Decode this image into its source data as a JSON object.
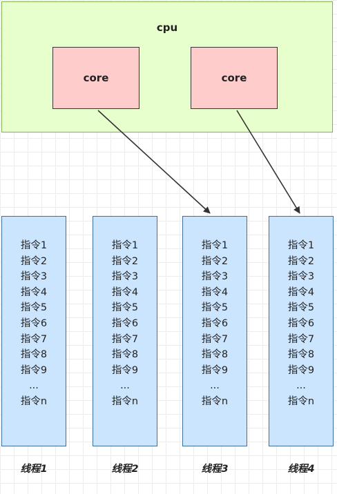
{
  "cpu": {
    "label": "cpu",
    "cores": [
      "core",
      "core"
    ]
  },
  "threads": [
    {
      "label": "线程1",
      "instructions": [
        "指令1",
        "指令2",
        "指令3",
        "指令4",
        "指令5",
        "指令6",
        "指令7",
        "指令8",
        "指令9",
        "...",
        "指令n"
      ]
    },
    {
      "label": "线程2",
      "instructions": [
        "指令1",
        "指令2",
        "指令3",
        "指令4",
        "指令5",
        "指令6",
        "指令7",
        "指令8",
        "指令9",
        "...",
        "指令n"
      ]
    },
    {
      "label": "线程3",
      "instructions": [
        "指令1",
        "指令2",
        "指令3",
        "指令4",
        "指令5",
        "指令6",
        "指令7",
        "指令8",
        "指令9",
        "...",
        "指令n"
      ]
    },
    {
      "label": "线程4",
      "instructions": [
        "指令1",
        "指令2",
        "指令3",
        "指令4",
        "指令5",
        "指令6",
        "指令7",
        "指令8",
        "指令9",
        "...",
        "指令n"
      ]
    }
  ],
  "colors": {
    "cpu_fill": "#e6ffcc",
    "core_fill": "#ffcccc",
    "thread_fill": "#cce5ff"
  }
}
